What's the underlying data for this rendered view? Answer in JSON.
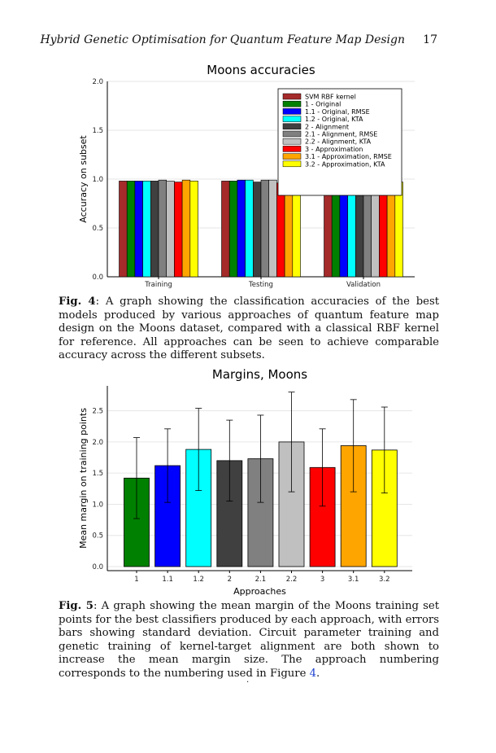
{
  "header": {
    "running_title": "Hybrid Genetic Optimisation for Quantum Feature Map Design",
    "page_number": "17"
  },
  "figure4": {
    "label": "Fig. 4",
    "caption": ": A graph showing the classification accuracies of the best models produced by various approaches of quantum feature map design on the Moons dataset, compared with a classical RBF kernel for reference. All approaches can be seen to achieve comparable accuracy across the different subsets."
  },
  "figure5": {
    "label": "Fig. 5",
    "caption_before_ref": ": A graph showing the mean margin of the Moons training set points for the best classifiers produced by each approach, with errors bars showing standard deviation. Circuit parameter training and genetic training of kernel-target alignment are both shown to increase the mean margin size. The approach numbering corresponds to the numbering used in Figure ",
    "ref": "4",
    "caption_after_ref": "."
  },
  "footer_mark": ".",
  "chart_data": [
    {
      "type": "bar",
      "title": "Moons accuracies",
      "xlabel": "",
      "ylabel": "Accuracy on subset",
      "ylim": [
        0,
        2.0
      ],
      "yticks": [
        "0.0",
        "0.5",
        "1.0",
        "1.5",
        "2.0"
      ],
      "grid": true,
      "legend_position": "top-right",
      "categories": [
        "Training",
        "Testing",
        "Validation"
      ],
      "series": [
        {
          "name": "SVM RBF kernel",
          "color": "#a52a2a",
          "values": [
            0.98,
            0.98,
            0.98
          ]
        },
        {
          "name": "1   - Original",
          "color": "#008000",
          "values": [
            0.98,
            0.98,
            0.98
          ]
        },
        {
          "name": "1.1 - Original, RMSE",
          "color": "#0000ff",
          "values": [
            0.98,
            0.99,
            0.99
          ]
        },
        {
          "name": "1.2 - Original, KTA",
          "color": "#00ffff",
          "values": [
            0.98,
            0.99,
            0.98
          ]
        },
        {
          "name": "2   - Alignment",
          "color": "#404040",
          "values": [
            0.98,
            0.97,
            0.99
          ]
        },
        {
          "name": "2.1 - Alignment, RMSE",
          "color": "#808080",
          "values": [
            0.99,
            0.99,
            0.99
          ]
        },
        {
          "name": "2.2 - Alignment, KTA",
          "color": "#c0c0c0",
          "values": [
            0.98,
            0.99,
            0.97
          ]
        },
        {
          "name": "3   - Approximation",
          "color": "#ff0000",
          "values": [
            0.97,
            0.96,
            0.97
          ]
        },
        {
          "name": "3.1 - Approximation, RMSE",
          "color": "#ffa500",
          "values": [
            0.99,
            0.99,
            0.99
          ]
        },
        {
          "name": "3.2 - Approximation, KTA",
          "color": "#ffff00",
          "values": [
            0.98,
            0.98,
            0.97
          ]
        }
      ]
    },
    {
      "type": "bar",
      "title": "Margins, Moons",
      "xlabel": "Approaches",
      "ylabel": "Mean margin on training points",
      "ylim": [
        0,
        2.9
      ],
      "yticks": [
        "0.0",
        "0.5",
        "1.0",
        "1.5",
        "2.0",
        "2.5"
      ],
      "grid": true,
      "categories": [
        "1",
        "1.1",
        "1.2",
        "2",
        "2.1",
        "2.2",
        "3",
        "3.1",
        "3.2"
      ],
      "values": [
        1.42,
        1.62,
        1.88,
        1.7,
        1.73,
        2.0,
        1.59,
        1.94,
        1.87
      ],
      "errors": [
        0.65,
        0.59,
        0.66,
        0.65,
        0.7,
        0.8,
        0.62,
        0.74,
        0.69
      ],
      "colors": [
        "#008000",
        "#0000ff",
        "#00ffff",
        "#404040",
        "#808080",
        "#c0c0c0",
        "#ff0000",
        "#ffa500",
        "#ffff00"
      ]
    }
  ]
}
